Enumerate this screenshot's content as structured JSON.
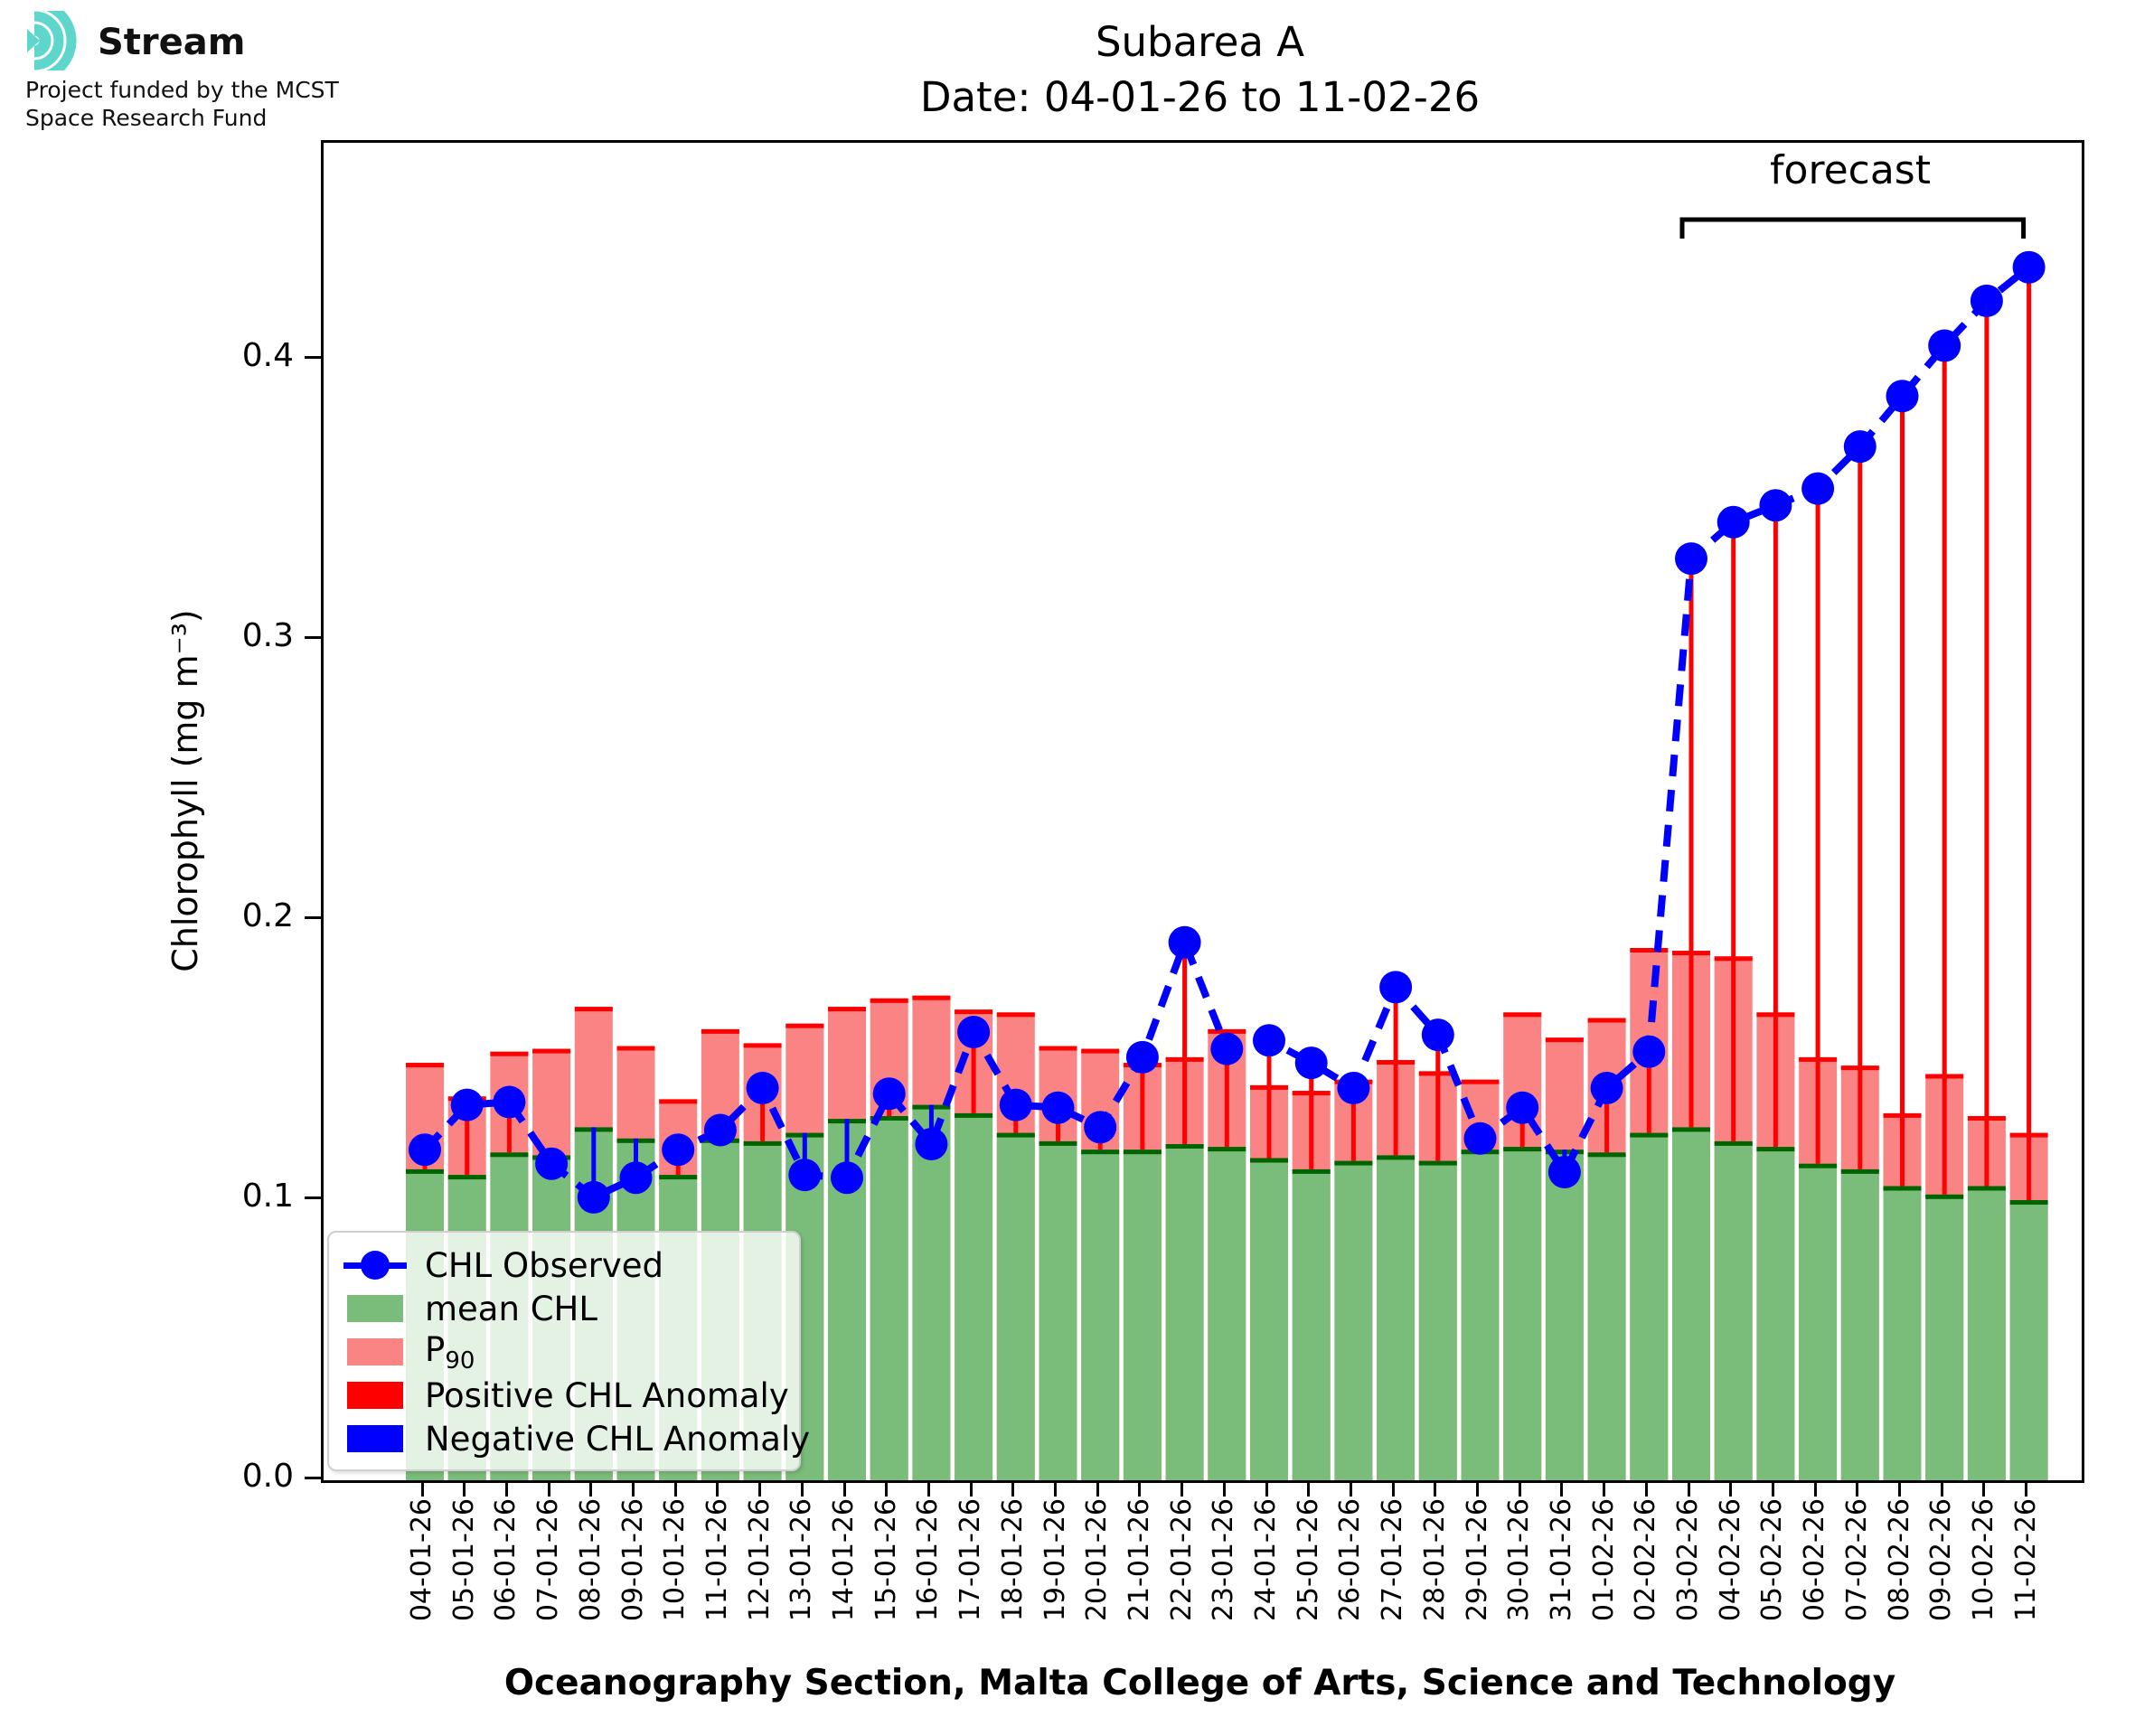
{
  "logo": {
    "brand": "Stream",
    "tagline_line1": "Project funded by the MCST",
    "tagline_line2": "Space Research Fund"
  },
  "title": {
    "line1": "Subarea A",
    "line2": "Date: 04-01-26 to 11-02-26"
  },
  "axes": {
    "ylabel": "Chlorophyll (mg m⁻³)",
    "xlabel": "Oceanography Section, Malta College of Arts, Science and Technology"
  },
  "forecast": {
    "label": "forecast"
  },
  "legend": {
    "items": [
      {
        "label": "CHL Observed"
      },
      {
        "label": "mean CHL"
      },
      {
        "label": "P",
        "label_sub": "90"
      },
      {
        "label": "Positive CHL Anomaly"
      },
      {
        "label": "Negative CHL Anomaly"
      }
    ]
  },
  "colors": {
    "mean_bar": "#7ABC7A",
    "mean_cap": "#006400",
    "p90_bar": "#FA8484",
    "p90_cap": "#FF0000",
    "positive_anomaly": "#FF0000",
    "negative_anomaly": "#0000FF",
    "observed": "#0000FF",
    "logo_teal": "#5FD6CC"
  },
  "chart_data": {
    "type": "bar",
    "title": "Subarea A",
    "subtitle": "Date: 04-01-26 to 11-02-26",
    "xlabel": "Oceanography Section, Malta College of Arts, Science and Technology",
    "ylabel": "Chlorophyll (mg m⁻³)",
    "ylim": [
      0,
      0.477
    ],
    "yticks": [
      0.0,
      0.1,
      0.2,
      0.3,
      0.4
    ],
    "legend_position": "lower left",
    "grid": false,
    "forecast_start_index": 30,
    "forecast_end_index": 38,
    "categories": [
      "04-01-26",
      "05-01-26",
      "06-01-26",
      "07-01-26",
      "08-01-26",
      "09-01-26",
      "10-01-26",
      "11-01-26",
      "12-01-26",
      "13-01-26",
      "14-01-26",
      "15-01-26",
      "16-01-26",
      "17-01-26",
      "18-01-26",
      "19-01-26",
      "20-01-26",
      "21-01-26",
      "22-01-26",
      "23-01-26",
      "24-01-26",
      "25-01-26",
      "26-01-26",
      "27-01-26",
      "28-01-26",
      "29-01-26",
      "30-01-26",
      "31-01-26",
      "01-02-26",
      "02-02-26",
      "03-02-26",
      "04-02-26",
      "05-02-26",
      "06-02-26",
      "07-02-26",
      "08-02-26",
      "09-02-26",
      "10-02-26",
      "11-02-26"
    ],
    "series": [
      {
        "name": "mean CHL",
        "type": "bar",
        "values": [
          0.111,
          0.109,
          0.117,
          0.116,
          0.126,
          0.122,
          0.109,
          0.122,
          0.121,
          0.124,
          0.129,
          0.13,
          0.134,
          0.131,
          0.124,
          0.121,
          0.118,
          0.118,
          0.12,
          0.119,
          0.115,
          0.111,
          0.114,
          0.116,
          0.114,
          0.118,
          0.119,
          0.118,
          0.117,
          0.124,
          0.126,
          0.121,
          0.119,
          0.113,
          0.111,
          0.105,
          0.102,
          0.105,
          0.1
        ]
      },
      {
        "name": "P90",
        "type": "bar",
        "values": [
          0.149,
          0.137,
          0.153,
          0.154,
          0.169,
          0.155,
          0.136,
          0.161,
          0.156,
          0.163,
          0.169,
          0.172,
          0.173,
          0.168,
          0.167,
          0.155,
          0.154,
          0.149,
          0.151,
          0.161,
          0.141,
          0.139,
          0.143,
          0.15,
          0.146,
          0.143,
          0.167,
          0.158,
          0.165,
          0.19,
          0.189,
          0.187,
          0.167,
          0.151,
          0.148,
          0.131,
          0.145,
          0.13,
          0.124
        ]
      },
      {
        "name": "CHL Observed",
        "type": "line",
        "values": [
          0.118,
          0.134,
          0.135,
          0.113,
          0.101,
          0.108,
          0.118,
          0.125,
          0.14,
          0.109,
          0.108,
          0.138,
          0.12,
          0.16,
          0.134,
          0.133,
          0.126,
          0.151,
          0.192,
          0.154,
          0.157,
          0.149,
          0.14,
          0.176,
          0.159,
          0.122,
          0.133,
          0.11,
          0.14,
          0.153,
          0.329,
          0.342,
          0.348,
          0.354,
          0.369,
          0.387,
          0.405,
          0.421,
          0.433
        ]
      }
    ]
  }
}
